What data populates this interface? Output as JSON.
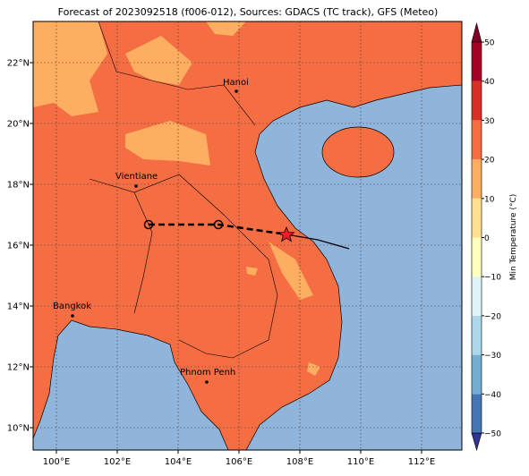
{
  "title": "Forecast of 2023092518 (f006-012), Sources: GDACS (TC track), GFS (Meteo)",
  "map": {
    "lon_ticks": [
      {
        "value": 100,
        "label": "100°E"
      },
      {
        "value": 102,
        "label": "102°E"
      },
      {
        "value": 104,
        "label": "104°E"
      },
      {
        "value": 106,
        "label": "106°E"
      },
      {
        "value": 108,
        "label": "108°E"
      },
      {
        "value": 110,
        "label": "110°E"
      },
      {
        "value": 112,
        "label": "112°E"
      }
    ],
    "lat_ticks": [
      {
        "value": 10,
        "label": "10°N"
      },
      {
        "value": 12,
        "label": "12°N"
      },
      {
        "value": 14,
        "label": "14°N"
      },
      {
        "value": 16,
        "label": "16°N"
      },
      {
        "value": 18,
        "label": "18°N"
      },
      {
        "value": 20,
        "label": "20°N"
      },
      {
        "value": 22,
        "label": "22°N"
      }
    ],
    "cities": [
      "Hanoi",
      "Vientiane",
      "Bangkok",
      "Phnom Penh"
    ]
  },
  "colorbar": {
    "label": "Min Temperature (°C)",
    "ticks": [
      {
        "value": -50,
        "label": "−50"
      },
      {
        "value": -40,
        "label": "−40"
      },
      {
        "value": -30,
        "label": "−30"
      },
      {
        "value": -20,
        "label": "−20"
      },
      {
        "value": -10,
        "label": "−10"
      },
      0,
      10,
      20,
      30,
      40,
      50
    ],
    "colors": [
      "#313695",
      "#4575b4",
      "#74add1",
      "#abd9e9",
      "#e0f3f8",
      "#ffffbf",
      "#fee090",
      "#fdae61",
      "#f46d43",
      "#d73027",
      "#a50026",
      "#800026"
    ]
  }
}
